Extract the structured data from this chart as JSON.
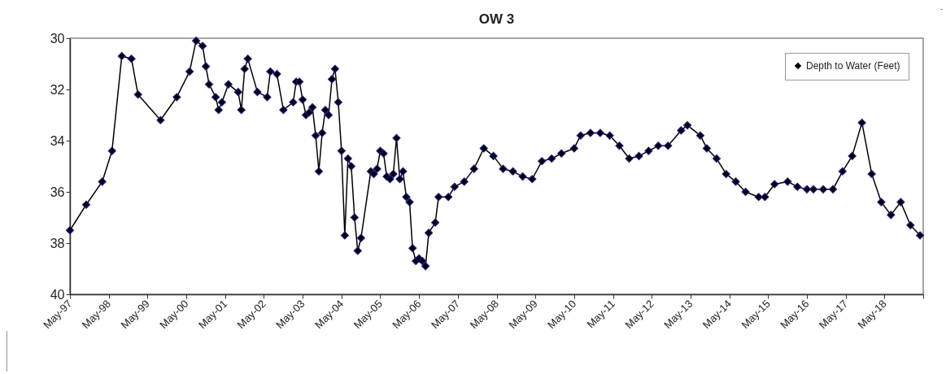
{
  "chart_data": {
    "type": "line",
    "title": "OW 3",
    "marker": "diamond",
    "line_style": "solid",
    "legend": "top right",
    "grid": false,
    "x": [
      "1997-05",
      "1997-10",
      "1998-03",
      "1998-06",
      "1998-09",
      "1998-12",
      "1999-02",
      "1999-09",
      "2000-02",
      "2000-06",
      "2000-08",
      "2000-10",
      "2000-11",
      "2000-12",
      "2001-02",
      "2001-03",
      "2001-04",
      "2001-06",
      "2001-09",
      "2001-10",
      "2001-11",
      "2001-12",
      "2002-03",
      "2002-06",
      "2002-07",
      "2002-09",
      "2002-11",
      "2003-02",
      "2003-03",
      "2003-04",
      "2003-05",
      "2003-06",
      "2003-07",
      "2003-08",
      "2003-09",
      "2003-10",
      "2003-11",
      "2003-12",
      "2004-01",
      "2004-02",
      "2004-03",
      "2004-04",
      "2004-05",
      "2004-06",
      "2004-07",
      "2004-08",
      "2004-09",
      "2004-10",
      "2004-11",
      "2005-02",
      "2005-03",
      "2005-04",
      "2005-05",
      "2005-06",
      "2005-07",
      "2005-08",
      "2005-09",
      "2005-10",
      "2005-11",
      "2005-12",
      "2006-01",
      "2006-02",
      "2006-03",
      "2006-04",
      "2006-05",
      "2006-06",
      "2006-07",
      "2006-08",
      "2006-10",
      "2006-11",
      "2007-02",
      "2007-04",
      "2007-07",
      "2007-10",
      "2008-01",
      "2008-04",
      "2008-07",
      "2008-10",
      "2009-01",
      "2009-04",
      "2009-07",
      "2009-10",
      "2010-01",
      "2010-05",
      "2010-07",
      "2010-10",
      "2011-01",
      "2011-04",
      "2011-07",
      "2011-10",
      "2012-01",
      "2012-04",
      "2012-07",
      "2012-10",
      "2013-02",
      "2013-04",
      "2013-08",
      "2013-10",
      "2014-01",
      "2014-04",
      "2014-07",
      "2014-10",
      "2015-02",
      "2015-04",
      "2015-07",
      "2015-11",
      "2016-02",
      "2016-05",
      "2016-07",
      "2016-10",
      "2017-01",
      "2017-04",
      "2017-07",
      "2017-10",
      "2018-01",
      "2018-04",
      "2018-07",
      "2018-10",
      "2019-01",
      "2019-04"
    ],
    "series": [
      {
        "name": "Depth to Water (Feet)",
        "color": "#000000",
        "values": [
          37.5,
          36.5,
          35.6,
          34.4,
          30.7,
          30.8,
          32.2,
          33.2,
          32.3,
          31.3,
          30.1,
          30.3,
          31.1,
          31.8,
          32.3,
          32.8,
          32.5,
          31.8,
          32.1,
          32.8,
          31.2,
          30.8,
          32.1,
          32.3,
          31.3,
          31.4,
          32.8,
          32.5,
          31.7,
          31.7,
          32.4,
          33.0,
          32.9,
          32.7,
          33.8,
          35.2,
          33.7,
          32.8,
          33.0,
          31.6,
          31.2,
          32.5,
          34.4,
          37.7,
          34.7,
          35.0,
          37.0,
          38.3,
          37.8,
          35.2,
          35.3,
          35.1,
          34.4,
          34.5,
          35.4,
          35.5,
          35.3,
          33.9,
          35.5,
          35.2,
          36.2,
          36.4,
          38.2,
          38.7,
          38.6,
          38.7,
          38.9,
          37.6,
          37.2,
          36.2,
          36.2,
          35.8,
          35.6,
          35.1,
          34.3,
          34.6,
          35.1,
          35.2,
          35.4,
          35.5,
          34.8,
          34.7,
          34.5,
          34.3,
          33.8,
          33.7,
          33.7,
          33.8,
          34.2,
          34.7,
          34.6,
          34.4,
          34.2,
          34.2,
          33.6,
          33.4,
          33.8,
          34.3,
          34.7,
          35.3,
          35.6,
          36.0,
          36.2,
          36.2,
          35.7,
          35.6,
          35.8,
          35.9,
          35.9,
          35.9,
          35.9,
          35.2,
          34.6,
          33.3,
          35.3,
          36.4,
          36.9,
          36.4,
          37.3,
          37.7
        ]
      }
    ],
    "ylim": [
      40,
      30
    ],
    "yticks": [
      30,
      32,
      34,
      36,
      38,
      40
    ],
    "xlim": [
      "1997-05",
      "2019-05"
    ],
    "xticks": [
      {
        "value": "1997-05",
        "label": "May-97"
      },
      {
        "value": "1998-05",
        "label": "May-98"
      },
      {
        "value": "1999-05",
        "label": "May-99"
      },
      {
        "value": "2000-05",
        "label": "May-00"
      },
      {
        "value": "2001-05",
        "label": "May-01"
      },
      {
        "value": "2002-05",
        "label": "May-02"
      },
      {
        "value": "2003-05",
        "label": "May-03"
      },
      {
        "value": "2004-05",
        "label": "May-04"
      },
      {
        "value": "2005-05",
        "label": "May-05"
      },
      {
        "value": "2006-05",
        "label": "May-06"
      },
      {
        "value": "2007-05",
        "label": "May-07"
      },
      {
        "value": "2008-05",
        "label": "May-08"
      },
      {
        "value": "2009-05",
        "label": "May-09"
      },
      {
        "value": "2010-05",
        "label": "May-10"
      },
      {
        "value": "2011-05",
        "label": "May-11"
      },
      {
        "value": "2012-05",
        "label": "May-12"
      },
      {
        "value": "2013-05",
        "label": "May-13"
      },
      {
        "value": "2014-05",
        "label": "May-14"
      },
      {
        "value": "2015-05",
        "label": "May-15"
      },
      {
        "value": "2016-05",
        "label": "May-16"
      },
      {
        "value": "2017-05",
        "label": "May-17"
      },
      {
        "value": "2018-05",
        "label": "May-18"
      },
      {
        "value": "2019-05",
        "label": null
      }
    ]
  }
}
